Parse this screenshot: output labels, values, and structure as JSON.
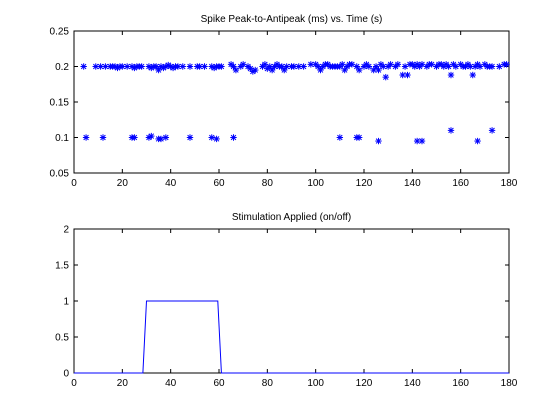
{
  "chart_data": [
    {
      "type": "scatter",
      "title": "Spike Peak-to-Antipeak (ms) vs. Time (s)",
      "xlabel": "",
      "ylabel": "",
      "xlim": [
        0,
        180
      ],
      "ylim": [
        0.05,
        0.25
      ],
      "xticks": [
        0,
        20,
        40,
        60,
        80,
        100,
        120,
        140,
        160,
        180
      ],
      "yticks": [
        0.05,
        0.1,
        0.15,
        0.2,
        0.25
      ],
      "xtick_labels": [
        "0",
        "20",
        "40",
        "60",
        "80",
        "100",
        "120",
        "140",
        "160",
        "180"
      ],
      "ytick_labels": [
        "0.05",
        "0.1",
        "0.15",
        "0.2",
        "0.25"
      ],
      "grid": false,
      "marker": "*",
      "color": "#0000ff",
      "series": [
        {
          "x": [
            4,
            9,
            11,
            13,
            15,
            16,
            17,
            18,
            19,
            20,
            22,
            24,
            25,
            26,
            27,
            28,
            31,
            32,
            33,
            34,
            35,
            36,
            37,
            38,
            39,
            40,
            41,
            42,
            43,
            45,
            48,
            51,
            52,
            54,
            57,
            58,
            59,
            60,
            61,
            65,
            66,
            67,
            69,
            70,
            72,
            73,
            74,
            75,
            78,
            79,
            80,
            81,
            82,
            83,
            84,
            85,
            86,
            87,
            88,
            90,
            91,
            93,
            95,
            98,
            100,
            101,
            102,
            103,
            104,
            105,
            106,
            107,
            108,
            109,
            110,
            111,
            112,
            113,
            114,
            115,
            117,
            118,
            120,
            121,
            122,
            124,
            125,
            126,
            127,
            128,
            129,
            130,
            131,
            133,
            134,
            136,
            137,
            138,
            139,
            140,
            141,
            142,
            143,
            144,
            146,
            147,
            148,
            150,
            151,
            152,
            153,
            154,
            155,
            156,
            157,
            158,
            160,
            161,
            162,
            163,
            164,
            165,
            166,
            167,
            168,
            170,
            171,
            172,
            173,
            176,
            178,
            179,
            5,
            12,
            24,
            25,
            31,
            32,
            35,
            36,
            38,
            48,
            57,
            59,
            66,
            110,
            117,
            118,
            126,
            142,
            144,
            156,
            167,
            173
          ],
          "y": [
            0.2,
            0.2,
            0.2,
            0.2,
            0.2,
            0.2,
            0.2,
            0.198,
            0.2,
            0.2,
            0.2,
            0.2,
            0.198,
            0.2,
            0.2,
            0.2,
            0.2,
            0.198,
            0.2,
            0.2,
            0.195,
            0.2,
            0.198,
            0.2,
            0.202,
            0.2,
            0.198,
            0.2,
            0.2,
            0.2,
            0.2,
            0.2,
            0.2,
            0.2,
            0.2,
            0.198,
            0.2,
            0.2,
            0.2,
            0.203,
            0.2,
            0.195,
            0.2,
            0.203,
            0.2,
            0.197,
            0.193,
            0.195,
            0.2,
            0.203,
            0.197,
            0.2,
            0.195,
            0.2,
            0.203,
            0.2,
            0.2,
            0.195,
            0.2,
            0.2,
            0.2,
            0.2,
            0.2,
            0.203,
            0.203,
            0.2,
            0.195,
            0.2,
            0.203,
            0.203,
            0.2,
            0.2,
            0.2,
            0.2,
            0.2,
            0.203,
            0.195,
            0.2,
            0.203,
            0.203,
            0.2,
            0.195,
            0.2,
            0.203,
            0.2,
            0.195,
            0.2,
            0.195,
            0.203,
            0.2,
            0.185,
            0.2,
            0.203,
            0.2,
            0.203,
            0.188,
            0.2,
            0.188,
            0.203,
            0.203,
            0.2,
            0.203,
            0.2,
            0.203,
            0.2,
            0.203,
            0.203,
            0.2,
            0.203,
            0.203,
            0.2,
            0.203,
            0.2,
            0.188,
            0.203,
            0.2,
            0.203,
            0.2,
            0.2,
            0.203,
            0.2,
            0.188,
            0.2,
            0.203,
            0.2,
            0.203,
            0.2,
            0.2,
            0.2,
            0.2,
            0.203,
            0.203,
            0.1,
            0.1,
            0.1,
            0.1,
            0.1,
            0.102,
            0.098,
            0.098,
            0.1,
            0.1,
            0.1,
            0.098,
            0.1,
            0.1,
            0.1,
            0.1,
            0.095,
            0.095,
            0.095,
            0.11,
            0.095,
            0.11
          ]
        }
      ]
    },
    {
      "type": "line",
      "title": "Stimulation Applied (on/off)",
      "xlabel": "",
      "ylabel": "",
      "xlim": [
        0,
        180
      ],
      "ylim": [
        0,
        2
      ],
      "xticks": [
        0,
        20,
        40,
        60,
        80,
        100,
        120,
        140,
        160,
        180
      ],
      "yticks": [
        0,
        0.5,
        1,
        1.5,
        2
      ],
      "xtick_labels": [
        "0",
        "20",
        "40",
        "60",
        "80",
        "100",
        "120",
        "140",
        "160",
        "180"
      ],
      "ytick_labels": [
        "0",
        "0.5",
        "1",
        "1.5",
        "2"
      ],
      "grid": false,
      "color": "#0000ff",
      "series": [
        {
          "x": [
            0,
            28.5,
            30,
            59.5,
            61,
            180
          ],
          "y": [
            0,
            0,
            1,
            1,
            0,
            0
          ]
        }
      ]
    }
  ]
}
